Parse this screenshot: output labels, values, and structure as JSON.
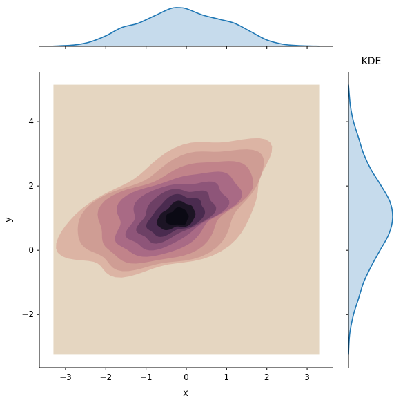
{
  "chart_data": {
    "type": "jointplot-kde",
    "joint": {
      "type": "kde-contour-filled",
      "xlabel": "x",
      "ylabel": "y",
      "xlim": [
        -3.65,
        3.65
      ],
      "ylim": [
        -3.65,
        5.55
      ],
      "xticks": [
        -3,
        -2,
        -1,
        0,
        1,
        2,
        3
      ],
      "yticks": [
        -2,
        0,
        2,
        4
      ],
      "xtick_labels": [
        "−3",
        "−2",
        "−1",
        "0",
        "1",
        "2",
        "3"
      ],
      "ytick_labels": [
        "−2",
        "0",
        "2",
        "4"
      ],
      "support_x": [
        -3.3,
        3.3
      ],
      "support_y": [
        -3.25,
        5.15
      ],
      "peak": {
        "x": -0.2,
        "y": 1.0
      },
      "levels": 9,
      "colors": [
        "#e5d6c1",
        "#dcb4a4",
        "#cf9d94",
        "#c1838a",
        "#a96a85",
        "#8e5579",
        "#6d4065",
        "#4a2b4f",
        "#1c1424",
        "#0b0a14"
      ]
    },
    "marginal_x": {
      "type": "kde",
      "x": [
        -3.3,
        -2.8,
        -2.4,
        -2.0,
        -1.6,
        -1.2,
        -0.8,
        -0.4,
        -0.2,
        0.0,
        0.4,
        0.8,
        1.2,
        1.6,
        2.0,
        2.4,
        2.8,
        3.3
      ],
      "density": [
        0.002,
        0.012,
        0.04,
        0.1,
        0.18,
        0.22,
        0.29,
        0.36,
        0.37,
        0.36,
        0.3,
        0.26,
        0.22,
        0.14,
        0.06,
        0.02,
        0.006,
        0.001
      ],
      "color": "#1f77b4",
      "fill": "#c6dbec"
    },
    "marginal_y": {
      "type": "kde",
      "title": "KDE",
      "y": [
        -3.25,
        -2.6,
        -2.0,
        -1.5,
        -1.0,
        -0.5,
        0.0,
        0.5,
        1.0,
        1.5,
        2.0,
        2.5,
        3.0,
        3.5,
        4.0,
        4.5,
        5.15
      ],
      "density": [
        0.0,
        0.01,
        0.04,
        0.08,
        0.12,
        0.18,
        0.25,
        0.32,
        0.35,
        0.33,
        0.26,
        0.18,
        0.12,
        0.08,
        0.04,
        0.015,
        0.0
      ],
      "color": "#1f77b4",
      "fill": "#c6dbec"
    }
  }
}
